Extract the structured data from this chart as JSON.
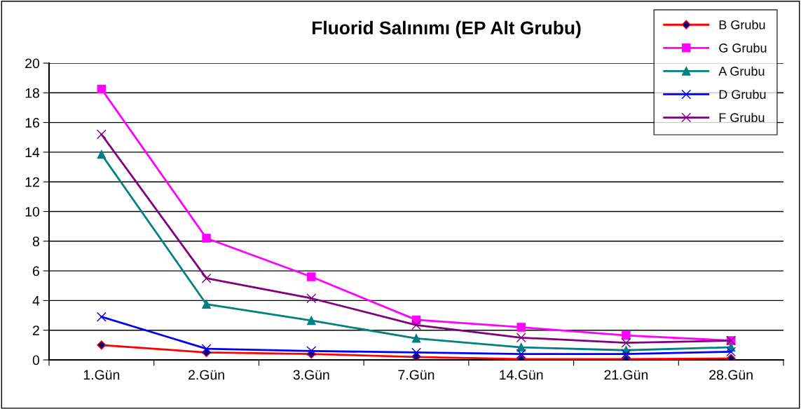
{
  "chart_data": {
    "type": "line",
    "title": "Fluorid Salınımı (EP Alt Grubu)",
    "categories": [
      "1.Gün",
      "2.Gün",
      "3.Gün",
      "7.Gün",
      "14.Gün",
      "21.Gün",
      "28.Gün"
    ],
    "series": [
      {
        "name": "B Grubu",
        "color": "#ff0000",
        "marker": "diamond",
        "values": [
          1.0,
          0.5,
          0.4,
          0.2,
          0.05,
          0.05,
          0.1
        ]
      },
      {
        "name": "G Grubu",
        "color": "#ff00ff",
        "marker": "square",
        "values": [
          18.25,
          8.2,
          5.6,
          2.7,
          2.2,
          1.65,
          1.3
        ]
      },
      {
        "name": "A Grubu",
        "color": "#008080",
        "marker": "triangle",
        "values": [
          13.85,
          3.75,
          2.65,
          1.45,
          0.85,
          0.65,
          0.85
        ]
      },
      {
        "name": "D Grubu",
        "color": "#0000ff",
        "marker": "cross",
        "values": [
          2.9,
          0.75,
          0.6,
          0.5,
          0.4,
          0.4,
          0.55
        ]
      },
      {
        "name": "F Grubu",
        "color": "#800080",
        "marker": "cross",
        "values": [
          15.2,
          5.5,
          4.15,
          2.35,
          1.5,
          1.15,
          1.3
        ]
      }
    ],
    "ylim": [
      0,
      20
    ],
    "yticks": [
      0,
      2,
      4,
      6,
      8,
      10,
      12,
      14,
      16,
      18,
      20
    ],
    "grid": "y",
    "legend": "top right",
    "line_style": "solid"
  }
}
